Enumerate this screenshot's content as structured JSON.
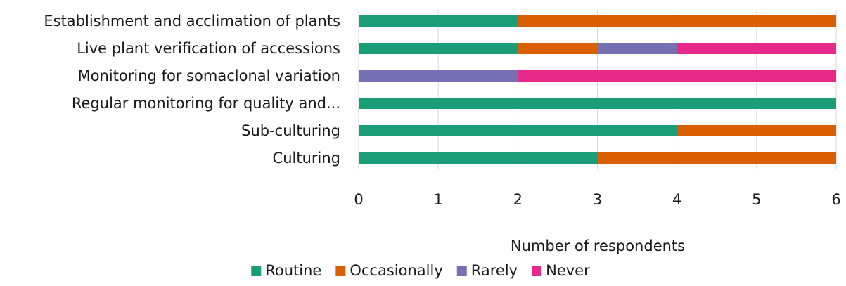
{
  "chart_data": {
    "type": "bar",
    "orientation": "horizontal",
    "stacked": true,
    "categories": [
      "Establishment and acclimation of plants",
      "Live plant verification of accessions",
      "Monitoring for somaclonal variation",
      "Regular monitoring for quality and...",
      "Sub-culturing",
      "Culturing"
    ],
    "series": [
      {
        "name": "Routine",
        "color": "#1b9e77",
        "values": [
          2,
          2,
          0,
          6,
          4,
          3
        ]
      },
      {
        "name": "Occasionally",
        "color": "#d95f02",
        "values": [
          4,
          1,
          0,
          0,
          2,
          3
        ]
      },
      {
        "name": "Rarely",
        "color": "#7570b3",
        "values": [
          0,
          1,
          2,
          0,
          0,
          0
        ]
      },
      {
        "name": "Never",
        "color": "#e7298a",
        "values": [
          0,
          2,
          4,
          0,
          0,
          0
        ]
      }
    ],
    "title": "",
    "xlabel": "Number of respondents",
    "ylabel": "",
    "xlim": [
      0,
      6
    ],
    "xticks": [
      "0",
      "1",
      "2",
      "3",
      "4",
      "5",
      "6"
    ],
    "grid": true,
    "legend_position": "bottom"
  }
}
